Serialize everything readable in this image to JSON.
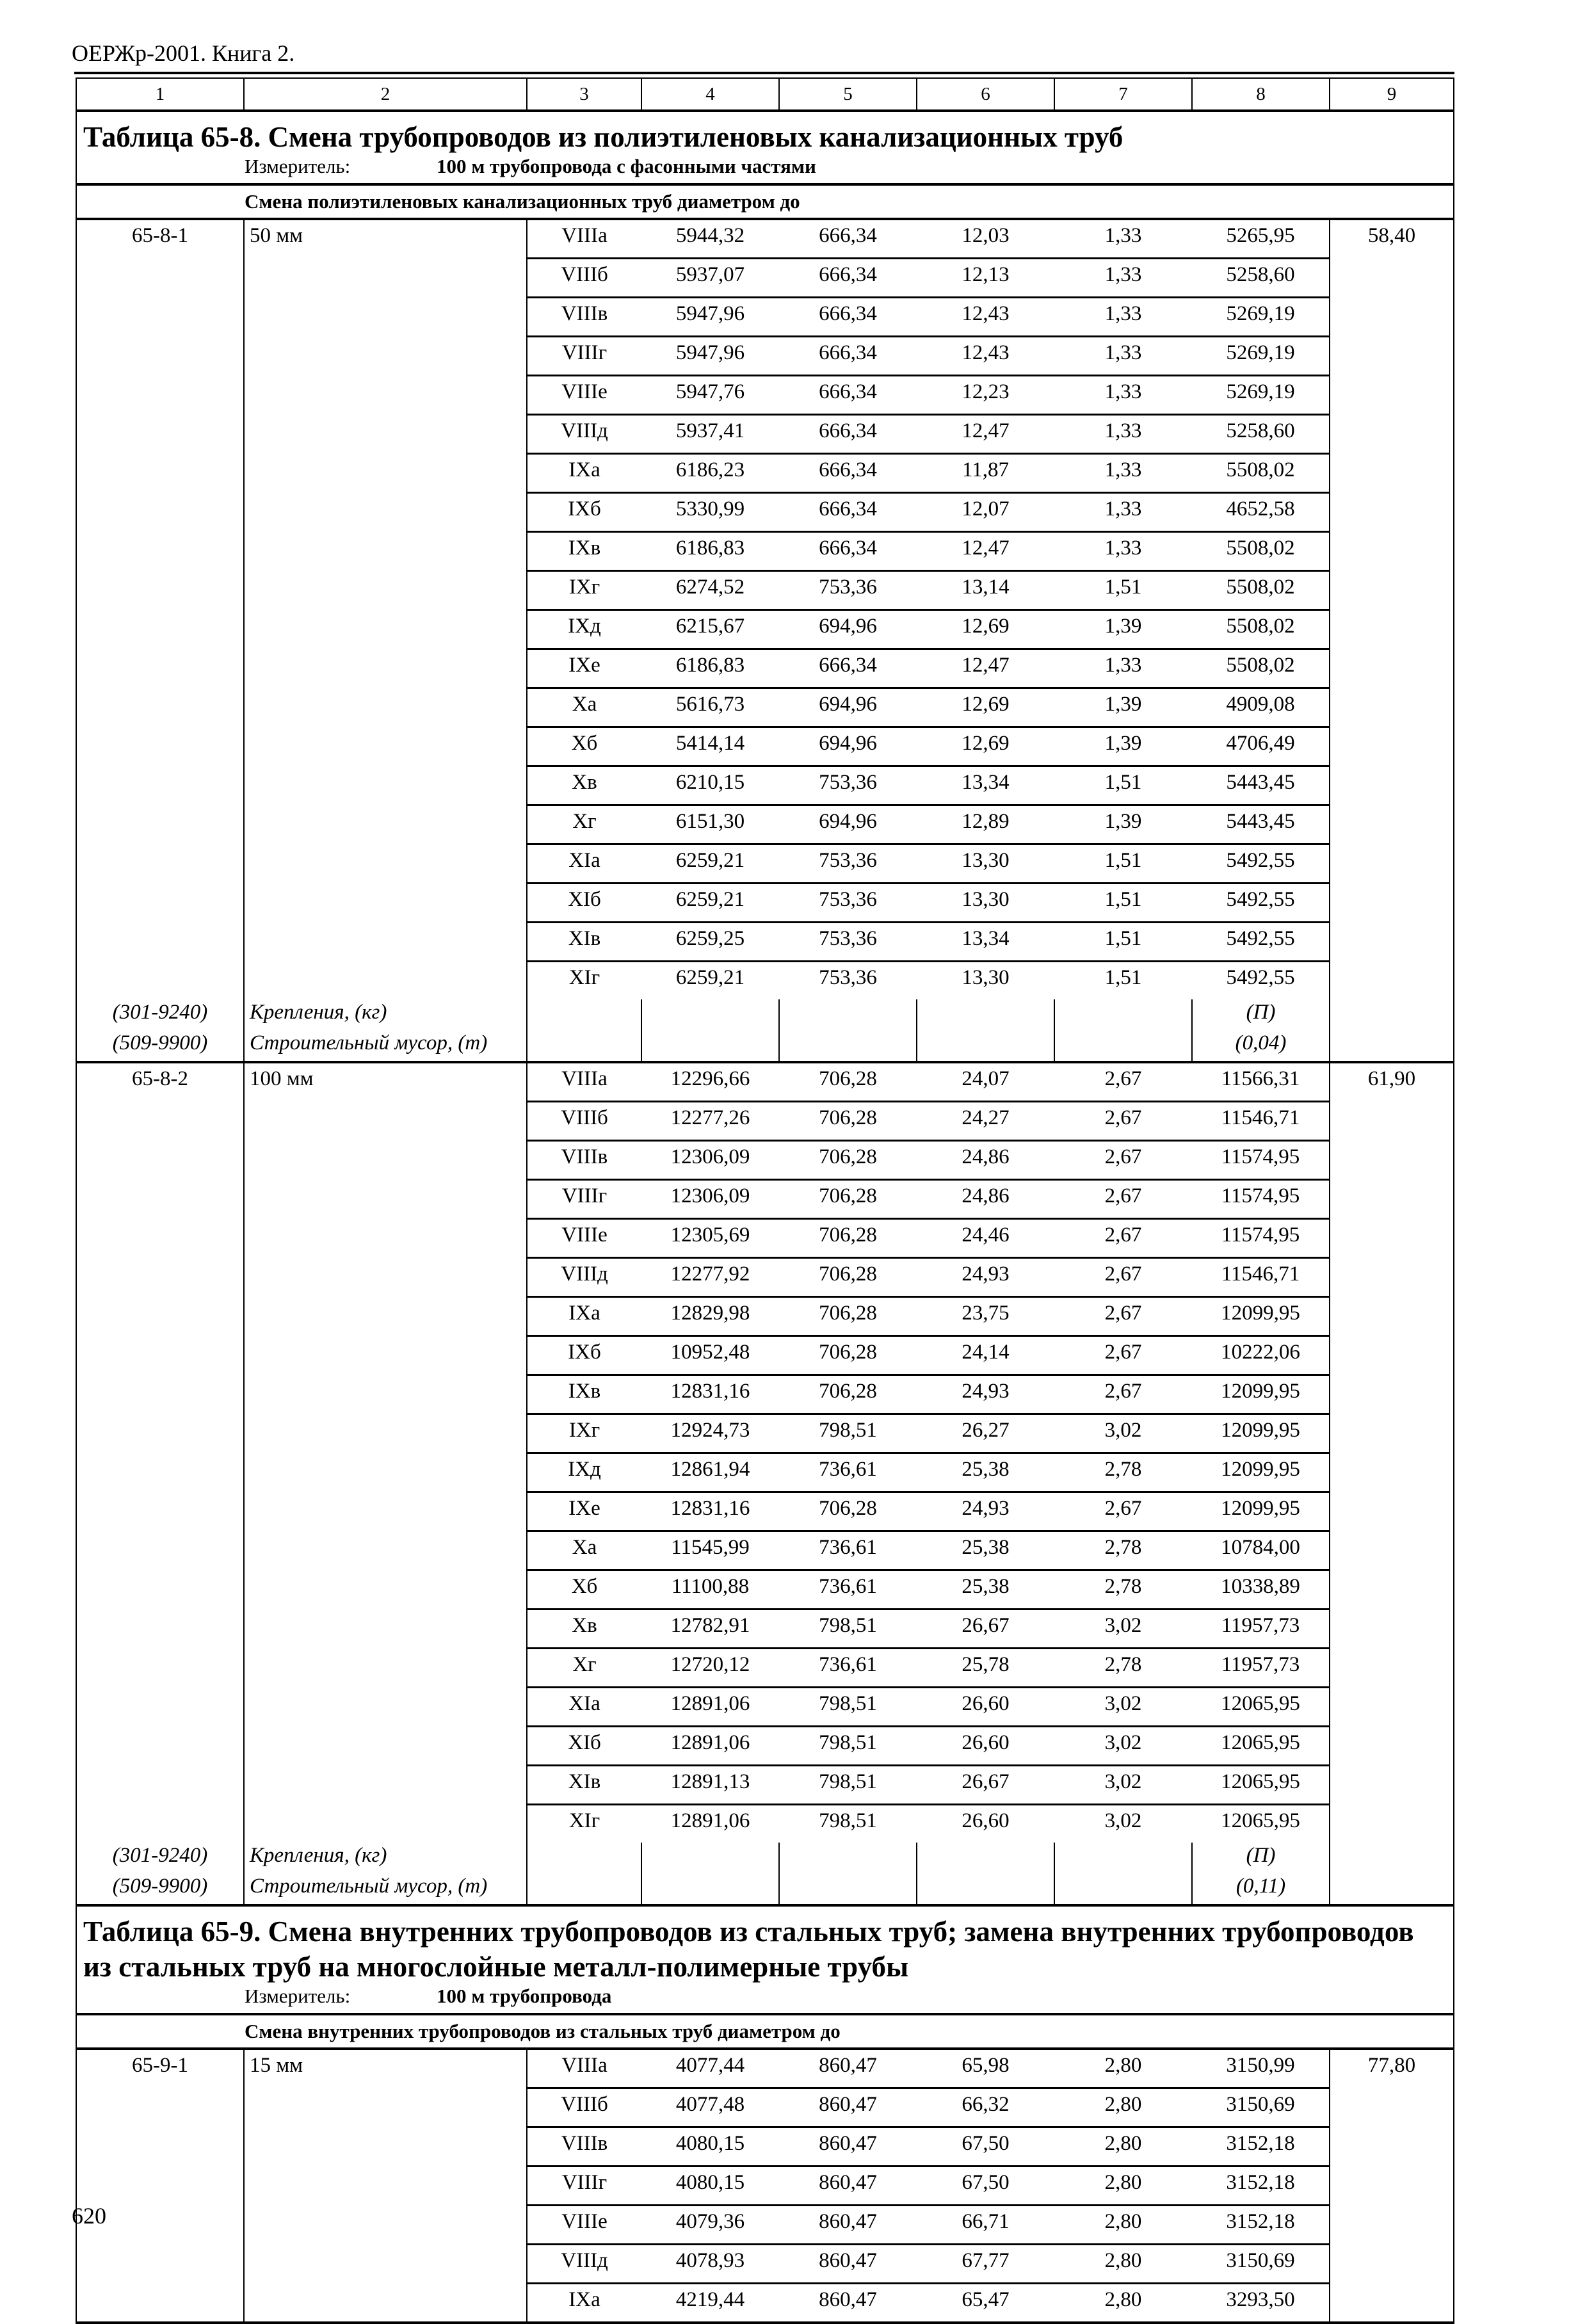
{
  "header": "ОЕРЖр-2001. Книга 2.",
  "page_number": "620",
  "column_numbers": [
    "1",
    "2",
    "3",
    "4",
    "5",
    "6",
    "7",
    "8",
    "9"
  ],
  "tables": [
    {
      "title": "Таблица 65-8. Смена трубопроводов из полиэтиленовых канализационных труб",
      "measure_label": "Измеритель:",
      "measure_value": "100 м трубопровода с фасонными частями",
      "section": "Смена полиэтиленовых канализационных труб диаметром до",
      "groups": [
        {
          "code": "65-8-1",
          "name": "50 мм",
          "col9": "58,40",
          "rows": [
            [
              "VIIIа",
              "5944,32",
              "666,34",
              "12,03",
              "1,33",
              "5265,95"
            ],
            [
              "VIIIб",
              "5937,07",
              "666,34",
              "12,13",
              "1,33",
              "5258,60"
            ],
            [
              "VIIIв",
              "5947,96",
              "666,34",
              "12,43",
              "1,33",
              "5269,19"
            ],
            [
              "VIIIг",
              "5947,96",
              "666,34",
              "12,43",
              "1,33",
              "5269,19"
            ],
            [
              "VIIIе",
              "5947,76",
              "666,34",
              "12,23",
              "1,33",
              "5269,19"
            ],
            [
              "VIIIд",
              "5937,41",
              "666,34",
              "12,47",
              "1,33",
              "5258,60"
            ],
            [
              "IXа",
              "6186,23",
              "666,34",
              "11,87",
              "1,33",
              "5508,02"
            ],
            [
              "IXб",
              "5330,99",
              "666,34",
              "12,07",
              "1,33",
              "4652,58"
            ],
            [
              "IXв",
              "6186,83",
              "666,34",
              "12,47",
              "1,33",
              "5508,02"
            ],
            [
              "IXг",
              "6274,52",
              "753,36",
              "13,14",
              "1,51",
              "5508,02"
            ],
            [
              "IXд",
              "6215,67",
              "694,96",
              "12,69",
              "1,39",
              "5508,02"
            ],
            [
              "IXе",
              "6186,83",
              "666,34",
              "12,47",
              "1,33",
              "5508,02"
            ],
            [
              "Xа",
              "5616,73",
              "694,96",
              "12,69",
              "1,39",
              "4909,08"
            ],
            [
              "Xб",
              "5414,14",
              "694,96",
              "12,69",
              "1,39",
              "4706,49"
            ],
            [
              "Xв",
              "6210,15",
              "753,36",
              "13,34",
              "1,51",
              "5443,45"
            ],
            [
              "Xг",
              "6151,30",
              "694,96",
              "12,89",
              "1,39",
              "5443,45"
            ],
            [
              "XIа",
              "6259,21",
              "753,36",
              "13,30",
              "1,51",
              "5492,55"
            ],
            [
              "XIб",
              "6259,21",
              "753,36",
              "13,30",
              "1,51",
              "5492,55"
            ],
            [
              "XIв",
              "6259,25",
              "753,36",
              "13,34",
              "1,51",
              "5492,55"
            ],
            [
              "XIг",
              "6259,21",
              "753,36",
              "13,30",
              "1,51",
              "5492,55"
            ]
          ],
          "extras": [
            {
              "code": "(301-9240)",
              "name": "Крепления, (кг)",
              "value": "(П)"
            },
            {
              "code": "(509-9900)",
              "name": "Строительный мусор, (т)",
              "value": "(0,04)"
            }
          ]
        },
        {
          "code": "65-8-2",
          "name": "100 мм",
          "col9": "61,90",
          "rows": [
            [
              "VIIIа",
              "12296,66",
              "706,28",
              "24,07",
              "2,67",
              "11566,31"
            ],
            [
              "VIIIб",
              "12277,26",
              "706,28",
              "24,27",
              "2,67",
              "11546,71"
            ],
            [
              "VIIIв",
              "12306,09",
              "706,28",
              "24,86",
              "2,67",
              "11574,95"
            ],
            [
              "VIIIг",
              "12306,09",
              "706,28",
              "24,86",
              "2,67",
              "11574,95"
            ],
            [
              "VIIIе",
              "12305,69",
              "706,28",
              "24,46",
              "2,67",
              "11574,95"
            ],
            [
              "VIIIд",
              "12277,92",
              "706,28",
              "24,93",
              "2,67",
              "11546,71"
            ],
            [
              "IXа",
              "12829,98",
              "706,28",
              "23,75",
              "2,67",
              "12099,95"
            ],
            [
              "IXб",
              "10952,48",
              "706,28",
              "24,14",
              "2,67",
              "10222,06"
            ],
            [
              "IXв",
              "12831,16",
              "706,28",
              "24,93",
              "2,67",
              "12099,95"
            ],
            [
              "IXг",
              "12924,73",
              "798,51",
              "26,27",
              "3,02",
              "12099,95"
            ],
            [
              "IXд",
              "12861,94",
              "736,61",
              "25,38",
              "2,78",
              "12099,95"
            ],
            [
              "IXе",
              "12831,16",
              "706,28",
              "24,93",
              "2,67",
              "12099,95"
            ],
            [
              "Xа",
              "11545,99",
              "736,61",
              "25,38",
              "2,78",
              "10784,00"
            ],
            [
              "Xб",
              "11100,88",
              "736,61",
              "25,38",
              "2,78",
              "10338,89"
            ],
            [
              "Xв",
              "12782,91",
              "798,51",
              "26,67",
              "3,02",
              "11957,73"
            ],
            [
              "Xг",
              "12720,12",
              "736,61",
              "25,78",
              "2,78",
              "11957,73"
            ],
            [
              "XIа",
              "12891,06",
              "798,51",
              "26,60",
              "3,02",
              "12065,95"
            ],
            [
              "XIб",
              "12891,06",
              "798,51",
              "26,60",
              "3,02",
              "12065,95"
            ],
            [
              "XIв",
              "12891,13",
              "798,51",
              "26,67",
              "3,02",
              "12065,95"
            ],
            [
              "XIг",
              "12891,06",
              "798,51",
              "26,60",
              "3,02",
              "12065,95"
            ]
          ],
          "extras": [
            {
              "code": "(301-9240)",
              "name": "Крепления, (кг)",
              "value": "(П)"
            },
            {
              "code": "(509-9900)",
              "name": "Строительный мусор, (т)",
              "value": "(0,11)"
            }
          ]
        }
      ]
    },
    {
      "title": "Таблица 65-9. Смена внутренних трубопроводов из стальных труб; замена внутренних трубопроводов из стальных труб на многослойные металл-полимерные трубы",
      "measure_label": "Измеритель:",
      "measure_value": "100 м трубопровода",
      "section": "Смена внутренних трубопроводов из стальных труб диаметром до",
      "groups": [
        {
          "code": "65-9-1",
          "name": "15 мм",
          "col9": "77,80",
          "rows": [
            [
              "VIIIа",
              "4077,44",
              "860,47",
              "65,98",
              "2,80",
              "3150,99"
            ],
            [
              "VIIIб",
              "4077,48",
              "860,47",
              "66,32",
              "2,80",
              "3150,69"
            ],
            [
              "VIIIв",
              "4080,15",
              "860,47",
              "67,50",
              "2,80",
              "3152,18"
            ],
            [
              "VIIIг",
              "4080,15",
              "860,47",
              "67,50",
              "2,80",
              "3152,18"
            ],
            [
              "VIIIе",
              "4079,36",
              "860,47",
              "66,71",
              "2,80",
              "3152,18"
            ],
            [
              "VIIIд",
              "4078,93",
              "860,47",
              "67,77",
              "2,80",
              "3150,69"
            ],
            [
              "IXа",
              "4219,44",
              "860,47",
              "65,47",
              "2,80",
              "3293,50"
            ]
          ],
          "extras": []
        }
      ]
    }
  ]
}
